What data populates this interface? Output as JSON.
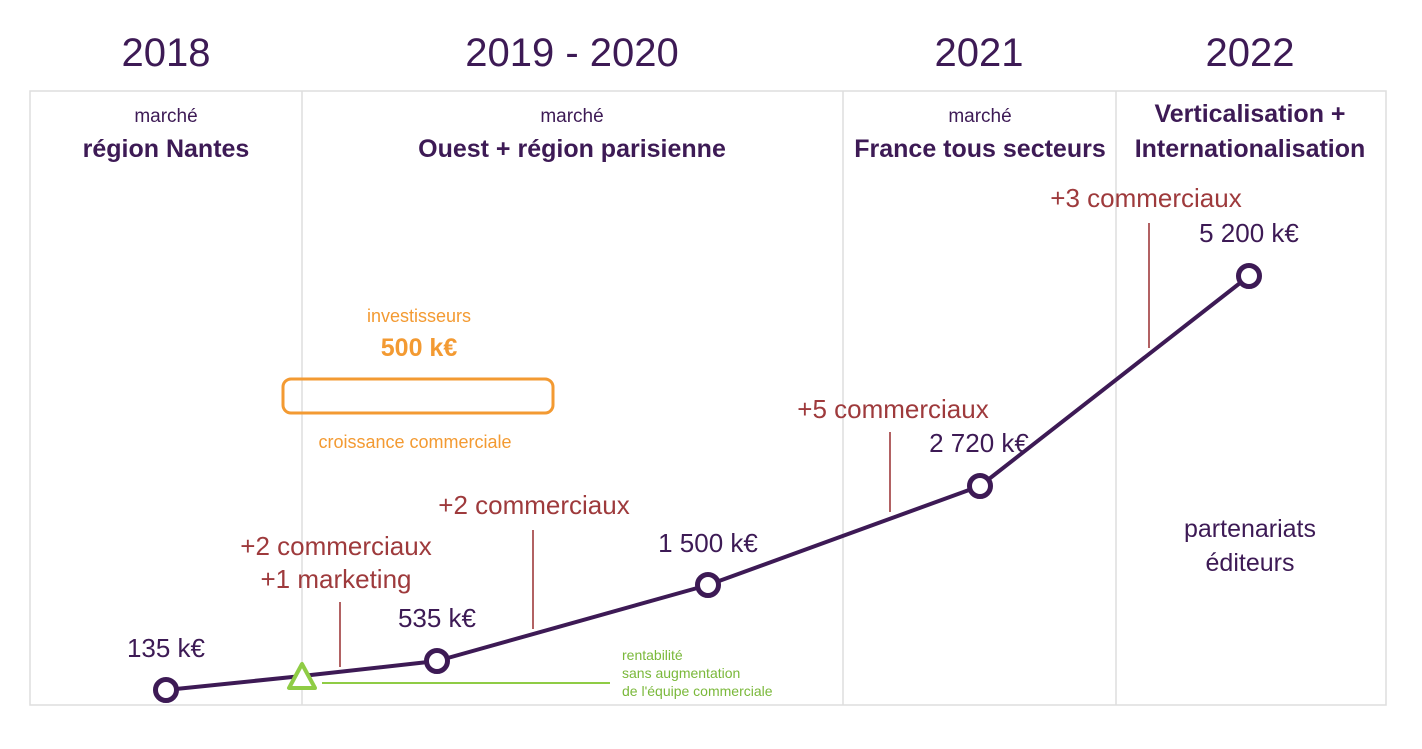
{
  "colors": {
    "purple": "#3d1a55",
    "red": "#9e3a3c",
    "orange": "#f39a32",
    "green": "#8fcc45",
    "border": "#dedede"
  },
  "years": [
    "2018",
    "2019 - 2020",
    "2021",
    "2022"
  ],
  "markets": [
    {
      "small": "marché",
      "title": "région Nantes"
    },
    {
      "small": "marché",
      "title": "Ouest + région parisienne"
    },
    {
      "small": "marché",
      "title": "France tous secteurs"
    },
    {
      "small": "",
      "title_line1": "Verticalisation +",
      "title_line2": "Internationalisation"
    }
  ],
  "revenue_points": [
    {
      "label": "135 k€",
      "shape": "circle"
    },
    {
      "label": "",
      "shape": "triangle"
    },
    {
      "label": "535 k€",
      "shape": "circle"
    },
    {
      "label": "1 500 k€",
      "shape": "circle"
    },
    {
      "label": "2 720 k€",
      "shape": "circle"
    },
    {
      "label": "5 200 k€",
      "shape": "circle"
    }
  ],
  "hires": [
    {
      "line1": "+2 commerciaux",
      "line2": "+1 marketing"
    },
    {
      "line1": "+2 commerciaux"
    },
    {
      "line1": "+5 commerciaux"
    },
    {
      "line1": "+3 commerciaux"
    }
  ],
  "investors": {
    "title": "investisseurs",
    "amount": "500 k€",
    "caption": "croissance commerciale"
  },
  "profitability": {
    "line1": "rentabilité",
    "line2": "sans augmentation",
    "line3": "de l'équipe commerciale"
  },
  "partners": {
    "line1": "partenariats",
    "line2": "éditeurs"
  }
}
